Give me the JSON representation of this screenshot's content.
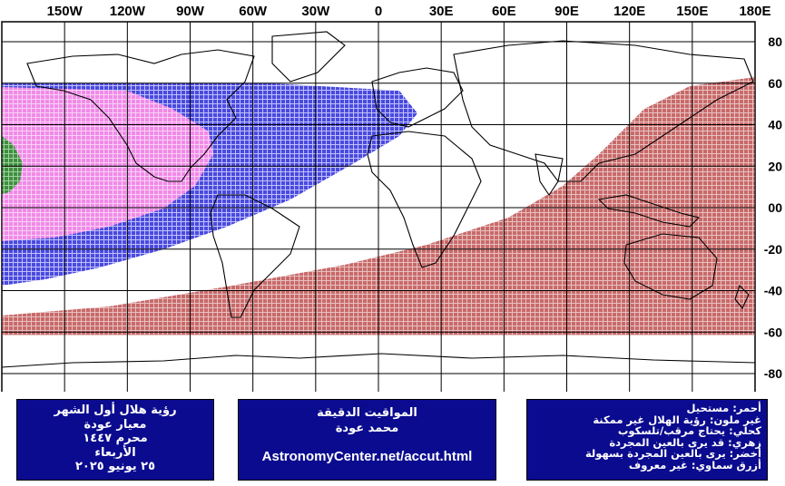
{
  "map": {
    "longitude_labels": [
      "150W",
      "120W",
      "90W",
      "60W",
      "30W",
      "0",
      "30E",
      "60E",
      "90E",
      "120E",
      "150E",
      "180E"
    ],
    "latitude_labels": [
      "80",
      "60",
      "40",
      "20",
      "00",
      "-20",
      "-40",
      "-60",
      "-80"
    ],
    "colors": {
      "red": "#c86a6a",
      "blue": "#4a4ae0",
      "pink": "#f08ae8",
      "green": "#3f8f3f",
      "grid": "#000000",
      "coast": "#000000"
    }
  },
  "legend_left": {
    "line1": "رؤية هلال أول الشهر",
    "line2": "معيار عودة",
    "line3": "محرم ١٤٤٧",
    "line4": "الأربعاء",
    "line5": "٢٥ يونيو ٢٠٢٥"
  },
  "legend_mid": {
    "line1": "المواقيت الدقيقة",
    "line2": "محمد عودة",
    "url": "AstronomyCenter.net/accut.html"
  },
  "legend_right": {
    "line1": "أحمر: مستحيل",
    "line2": "غير ملون: رؤية الهلال غير ممكنة",
    "line3": "كحلي: يحتاج مرقب/تلسكوب",
    "line4": "زهري: قد يرى بالعين المجردة",
    "line5": "أخضر: يرى بالعين المجردة بسهولة",
    "line6": "أزرق سماوي: غير معروف"
  }
}
